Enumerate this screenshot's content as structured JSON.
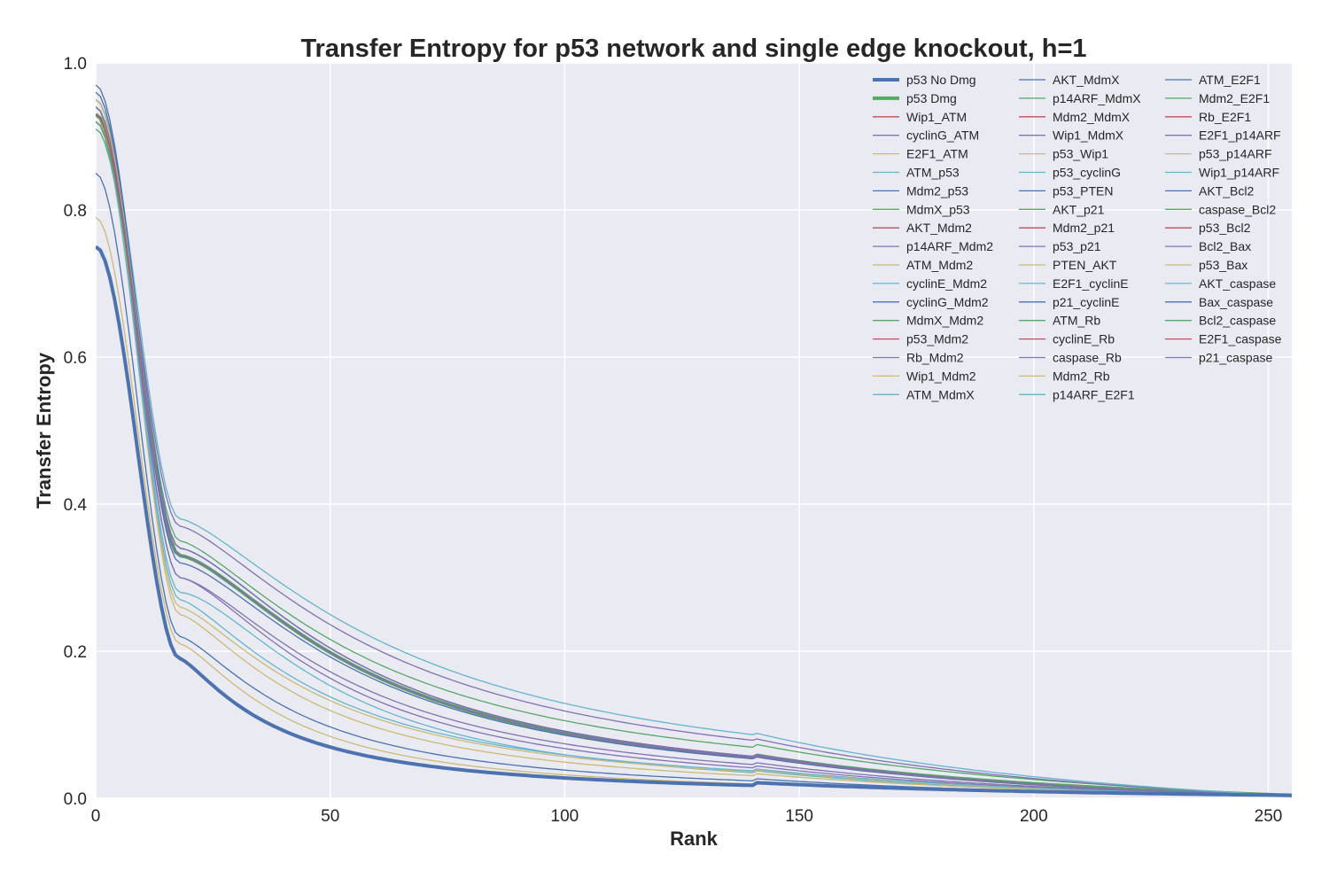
{
  "chart_data": {
    "type": "line",
    "title": "Transfer Entropy for p53 network and single edge knockout, h=1",
    "xlabel": "Rank",
    "ylabel": "Transfer Entropy",
    "xlim": [
      0,
      255
    ],
    "ylim": [
      0,
      1.0
    ],
    "xticks": [
      0,
      50,
      100,
      150,
      200,
      250
    ],
    "xtick_labels": [
      "0",
      "50",
      "100",
      "150",
      "200",
      "250"
    ],
    "yticks": [
      0.0,
      0.2,
      0.4,
      0.6,
      0.8,
      1.0
    ],
    "ytick_labels": [
      "0.0",
      "0.2",
      "0.4",
      "0.6",
      "0.8",
      "1.0"
    ],
    "grid": true,
    "legend_position": "top-right",
    "legend_columns": 3,
    "palette": [
      "#4c72b0",
      "#55a868",
      "#c44e52",
      "#8172b2",
      "#ccb974",
      "#64b5cd"
    ],
    "background": "#eaeaf2",
    "gridline_color": "#ffffff",
    "series": [
      {
        "name": "p53 No Dmg",
        "color": "#4c72b0",
        "bold": true,
        "start": 0.75,
        "knee": 0.19,
        "t1": 3.5,
        "p": 1.3,
        "floor": 0.02
      },
      {
        "name": "p53 Dmg",
        "color": "#55a868",
        "bold": true,
        "start": 0.93,
        "knee": 0.33,
        "t1": 7,
        "p": 1.5,
        "floor": 0.02
      },
      {
        "name": "Wip1_ATM",
        "color": "#c44e52",
        "start": 0.94,
        "knee": 0.33,
        "t1": 7,
        "p": 1.5
      },
      {
        "name": "cyclinG_ATM",
        "color": "#8172b2",
        "start": 0.93,
        "knee": 0.34,
        "t1": 7,
        "p": 1.5
      },
      {
        "name": "E2F1_ATM",
        "color": "#ccb974",
        "start": 0.95,
        "knee": 0.33,
        "t1": 7,
        "p": 1.5
      },
      {
        "name": "ATM_p53",
        "color": "#64b5cd",
        "start": 0.93,
        "knee": 0.28,
        "t1": 6,
        "p": 1.6
      },
      {
        "name": "Mdm2_p53",
        "color": "#4c72b0",
        "start": 0.85,
        "knee": 0.22,
        "t1": 4.5,
        "p": 1.4
      },
      {
        "name": "MdmX_p53",
        "color": "#55a868",
        "start": 0.94,
        "knee": 0.35,
        "t1": 7.5,
        "p": 1.4,
        "floor": 0.024
      },
      {
        "name": "AKT_Mdm2",
        "color": "#c44e52",
        "start": 0.92,
        "knee": 0.33,
        "t1": 7,
        "p": 1.5
      },
      {
        "name": "p14ARF_Mdm2",
        "color": "#8172b2",
        "start": 0.93,
        "knee": 0.37,
        "t1": 8,
        "p": 1.4
      },
      {
        "name": "ATM_Mdm2",
        "color": "#ccb974",
        "start": 0.79,
        "knee": 0.21,
        "t1": 4,
        "p": 1.4
      },
      {
        "name": "cyclinE_Mdm2",
        "color": "#64b5cd",
        "start": 0.92,
        "knee": 0.33,
        "t1": 7,
        "p": 1.5
      },
      {
        "name": "cyclinG_Mdm2",
        "color": "#4c72b0",
        "start": 0.93,
        "knee": 0.32,
        "t1": 7,
        "p": 1.5
      },
      {
        "name": "MdmX_Mdm2",
        "color": "#55a868",
        "start": 0.91,
        "knee": 0.34,
        "t1": 7,
        "p": 1.5
      },
      {
        "name": "p53_Mdm2",
        "color": "#c44e52",
        "start": 0.92,
        "knee": 0.33,
        "t1": 7,
        "p": 1.5
      },
      {
        "name": "Rb_Mdm2",
        "color": "#8172b2",
        "start": 0.93,
        "knee": 0.3,
        "t1": 6,
        "p": 1.5
      },
      {
        "name": "Wip1_Mdm2",
        "color": "#ccb974",
        "start": 0.94,
        "knee": 0.25,
        "t1": 5,
        "p": 1.4
      },
      {
        "name": "ATM_MdmX",
        "color": "#64b5cd",
        "start": 0.95,
        "knee": 0.38,
        "t1": 8.5,
        "p": 1.4
      },
      {
        "name": "AKT_MdmX",
        "color": "#4c72b0",
        "start": 0.96,
        "knee": 0.33,
        "t1": 7,
        "p": 1.5
      },
      {
        "name": "p14ARF_MdmX",
        "color": "#55a868",
        "start": 0.94,
        "knee": 0.33,
        "t1": 7,
        "p": 1.5
      },
      {
        "name": "Mdm2_MdmX",
        "color": "#c44e52",
        "start": 0.93,
        "knee": 0.33,
        "t1": 7,
        "p": 1.5
      },
      {
        "name": "Wip1_MdmX",
        "color": "#8172b2",
        "start": 0.92,
        "knee": 0.3,
        "t1": 6.5,
        "p": 1.5
      },
      {
        "name": "p53_Wip1",
        "color": "#ccb974",
        "start": 0.93,
        "knee": 0.26,
        "t1": 5.5,
        "p": 1.4
      },
      {
        "name": "p53_cyclinG",
        "color": "#64b5cd",
        "start": 0.92,
        "knee": 0.27,
        "t1": 5.5,
        "p": 1.4
      },
      {
        "name": "p53_PTEN",
        "color": "#4c72b0",
        "start": 0.95,
        "knee": 0.34,
        "t1": 7,
        "p": 1.5
      },
      {
        "name": "AKT_p21",
        "color": "#55a868",
        "start": 0.93,
        "knee": 0.33,
        "t1": 7,
        "p": 1.5
      },
      {
        "name": "Mdm2_p21",
        "color": "#c44e52",
        "start": 0.94,
        "knee": 0.33,
        "t1": 7,
        "p": 1.5
      },
      {
        "name": "p53_p21",
        "color": "#8172b2",
        "start": 0.93,
        "knee": 0.34,
        "t1": 7,
        "p": 1.5
      },
      {
        "name": "PTEN_AKT",
        "color": "#ccb974",
        "start": 0.92,
        "knee": 0.33,
        "t1": 7,
        "p": 1.5
      },
      {
        "name": "E2F1_cyclinE",
        "color": "#64b5cd",
        "start": 0.93,
        "knee": 0.33,
        "t1": 7,
        "p": 1.5
      },
      {
        "name": "p21_cyclinE",
        "color": "#4c72b0",
        "start": 0.97,
        "knee": 0.33,
        "t1": 7,
        "p": 1.5
      },
      {
        "name": "ATM_Rb",
        "color": "#55a868",
        "start": 0.94,
        "knee": 0.33,
        "t1": 7,
        "p": 1.5
      },
      {
        "name": "cyclinE_Rb",
        "color": "#c44e52",
        "start": 0.92,
        "knee": 0.33,
        "t1": 7,
        "p": 1.5
      },
      {
        "name": "caspase_Rb",
        "color": "#8172b2",
        "start": 0.93,
        "knee": 0.33,
        "t1": 7,
        "p": 1.5
      },
      {
        "name": "Mdm2_Rb",
        "color": "#ccb974",
        "start": 0.95,
        "knee": 0.33,
        "t1": 7,
        "p": 1.5
      },
      {
        "name": "p14ARF_E2F1",
        "color": "#64b5cd",
        "start": 0.93,
        "knee": 0.33,
        "t1": 7,
        "p": 1.5
      },
      {
        "name": "ATM_E2F1",
        "color": "#4c72b0",
        "start": 0.94,
        "knee": 0.33,
        "t1": 7,
        "p": 1.5
      },
      {
        "name": "Mdm2_E2F1",
        "color": "#55a868",
        "start": 0.93,
        "knee": 0.33,
        "t1": 7,
        "p": 1.5
      },
      {
        "name": "Rb_E2F1",
        "color": "#c44e52",
        "start": 0.92,
        "knee": 0.33,
        "t1": 7,
        "p": 1.5
      },
      {
        "name": "E2F1_p14ARF",
        "color": "#8172b2",
        "start": 0.93,
        "knee": 0.33,
        "t1": 7,
        "p": 1.5
      },
      {
        "name": "p53_p14ARF",
        "color": "#ccb974",
        "start": 0.94,
        "knee": 0.33,
        "t1": 7,
        "p": 1.5
      },
      {
        "name": "Wip1_p14ARF",
        "color": "#64b5cd",
        "start": 0.92,
        "knee": 0.33,
        "t1": 7,
        "p": 1.5
      },
      {
        "name": "AKT_Bcl2",
        "color": "#4c72b0",
        "start": 0.93,
        "knee": 0.33,
        "t1": 7,
        "p": 1.5
      },
      {
        "name": "caspase_Bcl2",
        "color": "#55a868",
        "start": 0.94,
        "knee": 0.33,
        "t1": 7,
        "p": 1.5
      },
      {
        "name": "p53_Bcl2",
        "color": "#c44e52",
        "start": 0.93,
        "knee": 0.33,
        "t1": 7,
        "p": 1.5
      },
      {
        "name": "Bcl2_Bax",
        "color": "#8172b2",
        "start": 0.92,
        "knee": 0.33,
        "t1": 7,
        "p": 1.5
      },
      {
        "name": "p53_Bax",
        "color": "#ccb974",
        "start": 0.93,
        "knee": 0.33,
        "t1": 7,
        "p": 1.5
      },
      {
        "name": "AKT_caspase",
        "color": "#64b5cd",
        "start": 0.94,
        "knee": 0.33,
        "t1": 7,
        "p": 1.5
      },
      {
        "name": "Bax_caspase",
        "color": "#4c72b0",
        "start": 0.93,
        "knee": 0.33,
        "t1": 7,
        "p": 1.5
      },
      {
        "name": "Bcl2_caspase",
        "color": "#55a868",
        "start": 0.92,
        "knee": 0.33,
        "t1": 7,
        "p": 1.5
      },
      {
        "name": "E2F1_caspase",
        "color": "#c44e52",
        "start": 0.93,
        "knee": 0.33,
        "t1": 7,
        "p": 1.5
      },
      {
        "name": "p21_caspase",
        "color": "#8172b2",
        "start": 0.94,
        "knee": 0.33,
        "t1": 7,
        "p": 1.5
      }
    ]
  }
}
